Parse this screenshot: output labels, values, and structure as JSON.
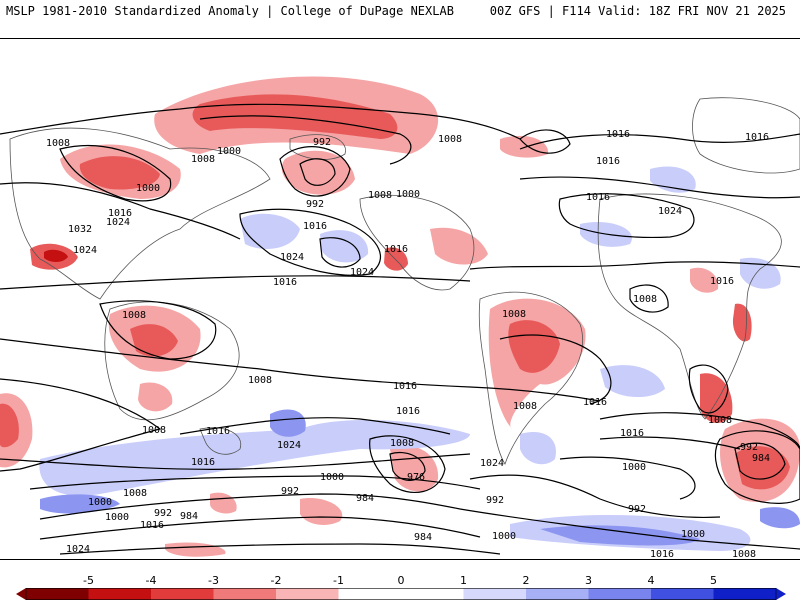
{
  "header": {
    "title": "MSLP 1981-2010 Standardized Anomaly | College of DuPage NEXLAB",
    "run_info": "00Z GFS | F114 Valid: 18Z FRI NOV 21 2025"
  },
  "map": {
    "isobar_labels": [
      "1008",
      "1000",
      "992",
      "1008",
      "1016",
      "992",
      "1008",
      "1000",
      "1016",
      "1008",
      "1000",
      "1016",
      "1032",
      "1024",
      "1024",
      "1016",
      "1016",
      "1024",
      "1024",
      "1016",
      "1016",
      "1024",
      "1016",
      "1016",
      "1008",
      "1008",
      "1008",
      "1008",
      "1008",
      "1016",
      "1024",
      "1016",
      "1016",
      "1008",
      "1000",
      "1016",
      "1000",
      "992",
      "984",
      "1024",
      "1008",
      "976",
      "992",
      "984",
      "984",
      "992",
      "1000",
      "992",
      "1024",
      "1016",
      "1008",
      "1000",
      "992",
      "984",
      "1008",
      "1000",
      "1016",
      "1008",
      "1016",
      "1000",
      "992",
      "1016"
    ],
    "colors": {
      "neg_strong": "#d7191c",
      "neg_mid": "#e85a5a",
      "neg_light": "#f5a5a5",
      "pos_light": "#c9cdfa",
      "pos_mid": "#8c96f0",
      "pos_strong": "#4a5ae0",
      "land": "#d8d8d8",
      "contour": "#000000"
    }
  },
  "colorbar": {
    "ticks": [
      "-5",
      "-4",
      "-3",
      "-2",
      "-1",
      "0",
      "1",
      "2",
      "3",
      "4",
      "5"
    ],
    "colors": [
      "#7f0000",
      "#c41010",
      "#e23b3b",
      "#f07a7a",
      "#f9b5b5",
      "#ffffff",
      "#ffffff",
      "#d6d9fb",
      "#a8b0f5",
      "#7a84ee",
      "#4050e0",
      "#1020c8"
    ]
  }
}
